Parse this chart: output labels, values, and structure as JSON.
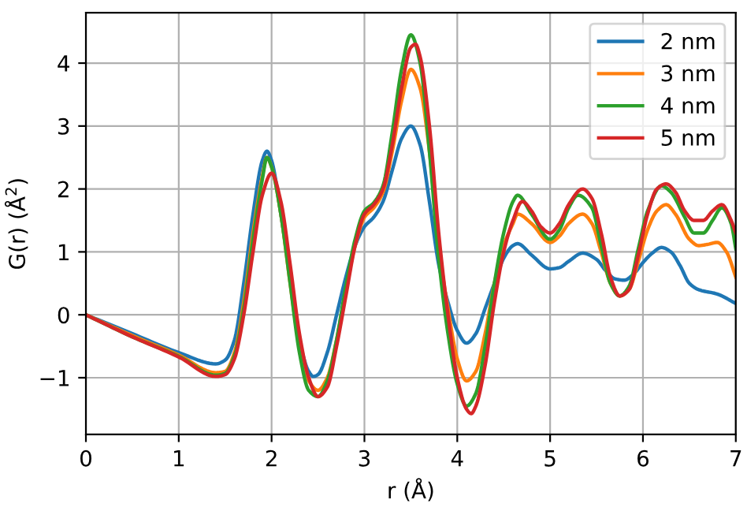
{
  "chart_data": {
    "type": "line",
    "xlabel": "r (Å)",
    "ylabel": "G(r) (Å$^{2}$)",
    "xlim": [
      0,
      7
    ],
    "ylim": [
      -1.9,
      4.8
    ],
    "xticks": [
      0,
      1,
      2,
      3,
      4,
      5,
      6,
      7
    ],
    "yticks": [
      {
        "value": -1,
        "label": "−1"
      },
      0,
      1,
      2,
      3,
      4
    ],
    "grid": true,
    "legend": "top right",
    "series": [
      {
        "name": "2 nm",
        "color": "#1f77b4",
        "x": [
          0,
          0.5,
          1,
          1.4,
          1.5,
          1.6,
          1.7,
          1.8,
          1.9,
          1.95,
          2.0,
          2.1,
          2.2,
          2.3,
          2.4,
          2.45,
          2.5,
          2.6,
          2.7,
          2.8,
          2.9,
          3.0,
          3.1,
          3.2,
          3.3,
          3.4,
          3.5,
          3.6,
          3.7,
          3.8,
          3.9,
          4.0,
          4.1,
          4.2,
          4.3,
          4.4,
          4.5,
          4.6,
          4.65,
          4.8,
          5.0,
          5.1,
          5.2,
          5.35,
          5.5,
          5.6,
          5.7,
          5.8,
          5.9,
          6.0,
          6.1,
          6.2,
          6.3,
          6.4,
          6.5,
          6.6,
          6.8,
          7.0
        ],
        "values": [
          0,
          -0.3,
          -0.6,
          -0.78,
          -0.72,
          -0.4,
          0.5,
          1.6,
          2.45,
          2.6,
          2.45,
          1.6,
          0.6,
          -0.4,
          -0.9,
          -0.98,
          -0.95,
          -0.6,
          0,
          0.6,
          1.1,
          1.4,
          1.55,
          1.8,
          2.3,
          2.8,
          3.0,
          2.7,
          1.8,
          0.8,
          0.2,
          -0.25,
          -0.45,
          -0.3,
          0.1,
          0.5,
          0.9,
          1.1,
          1.13,
          0.95,
          0.73,
          0.75,
          0.85,
          0.98,
          0.88,
          0.7,
          0.57,
          0.55,
          0.65,
          0.83,
          0.98,
          1.07,
          1.0,
          0.78,
          0.5,
          0.4,
          0.33,
          0.18
        ]
      },
      {
        "name": "3 nm",
        "color": "#ff7f0e",
        "x": [
          0,
          0.5,
          1,
          1.4,
          1.5,
          1.6,
          1.7,
          1.8,
          1.9,
          1.95,
          2.0,
          2.1,
          2.2,
          2.3,
          2.4,
          2.5,
          2.6,
          2.7,
          2.8,
          2.9,
          3.0,
          3.1,
          3.2,
          3.3,
          3.4,
          3.5,
          3.6,
          3.7,
          3.8,
          3.9,
          4.0,
          4.1,
          4.2,
          4.3,
          4.4,
          4.5,
          4.6,
          4.65,
          4.8,
          5.0,
          5.1,
          5.2,
          5.35,
          5.45,
          5.55,
          5.65,
          5.75,
          5.85,
          5.95,
          6.05,
          6.15,
          6.25,
          6.35,
          6.5,
          6.6,
          6.7,
          6.8,
          6.9,
          7.0
        ],
        "values": [
          0,
          -0.33,
          -0.64,
          -0.92,
          -0.9,
          -0.6,
          0.2,
          1.3,
          2.2,
          2.5,
          2.35,
          1.6,
          0.5,
          -0.5,
          -1.05,
          -1.2,
          -1.0,
          -0.4,
          0.4,
          1.1,
          1.55,
          1.7,
          1.95,
          2.6,
          3.4,
          3.9,
          3.6,
          2.6,
          1.1,
          0.1,
          -0.7,
          -1.05,
          -0.9,
          -0.3,
          0.5,
          1.1,
          1.45,
          1.6,
          1.45,
          1.15,
          1.25,
          1.45,
          1.6,
          1.45,
          1.0,
          0.5,
          0.3,
          0.4,
          0.85,
          1.35,
          1.65,
          1.75,
          1.6,
          1.2,
          1.1,
          1.12,
          1.15,
          1.0,
          0.6
        ]
      },
      {
        "name": "4 nm",
        "color": "#2ca02c",
        "x": [
          0,
          0.5,
          1,
          1.4,
          1.5,
          1.6,
          1.7,
          1.8,
          1.9,
          1.95,
          2.0,
          2.1,
          2.2,
          2.3,
          2.4,
          2.5,
          2.6,
          2.7,
          2.8,
          2.9,
          3.0,
          3.1,
          3.2,
          3.3,
          3.4,
          3.5,
          3.6,
          3.7,
          3.8,
          3.9,
          4.0,
          4.1,
          4.2,
          4.3,
          4.4,
          4.5,
          4.6,
          4.65,
          4.8,
          5.0,
          5.1,
          5.2,
          5.3,
          5.45,
          5.55,
          5.65,
          5.75,
          5.85,
          5.95,
          6.05,
          6.2,
          6.3,
          6.45,
          6.55,
          6.65,
          6.75,
          6.85,
          6.95,
          7.0
        ],
        "values": [
          0,
          -0.35,
          -0.66,
          -0.96,
          -0.93,
          -0.65,
          0.1,
          1.2,
          2.15,
          2.5,
          2.35,
          1.6,
          0.5,
          -0.6,
          -1.2,
          -1.3,
          -1.05,
          -0.4,
          0.45,
          1.2,
          1.65,
          1.78,
          2.05,
          2.9,
          3.9,
          4.45,
          4.0,
          2.6,
          0.9,
          -0.3,
          -1.1,
          -1.45,
          -1.25,
          -0.5,
          0.5,
          1.3,
          1.8,
          1.9,
          1.6,
          1.2,
          1.35,
          1.7,
          1.9,
          1.7,
          1.1,
          0.5,
          0.3,
          0.45,
          1.05,
          1.65,
          2.05,
          1.95,
          1.55,
          1.3,
          1.3,
          1.5,
          1.7,
          1.45,
          1.05
        ]
      },
      {
        "name": "5 nm",
        "color": "#d62728",
        "x": [
          0,
          0.5,
          1,
          1.4,
          1.5,
          1.6,
          1.7,
          1.8,
          1.9,
          2.0,
          2.1,
          2.2,
          2.3,
          2.4,
          2.5,
          2.6,
          2.7,
          2.8,
          2.9,
          3.0,
          3.1,
          3.2,
          3.3,
          3.4,
          3.5,
          3.55,
          3.6,
          3.7,
          3.8,
          3.9,
          4.0,
          4.1,
          4.15,
          4.2,
          4.3,
          4.4,
          4.5,
          4.6,
          4.7,
          4.8,
          4.9,
          5.0,
          5.1,
          5.2,
          5.35,
          5.45,
          5.55,
          5.65,
          5.75,
          5.85,
          5.95,
          6.05,
          6.15,
          6.25,
          6.35,
          6.45,
          6.55,
          6.65,
          6.75,
          6.85,
          6.95,
          7.0
        ],
        "values": [
          0,
          -0.35,
          -0.67,
          -0.98,
          -0.95,
          -0.7,
          0,
          1.0,
          1.9,
          2.25,
          1.8,
          0.8,
          -0.3,
          -1.0,
          -1.3,
          -1.15,
          -0.5,
          0.3,
          1.1,
          1.6,
          1.75,
          2.0,
          2.7,
          3.6,
          4.25,
          4.3,
          4.1,
          3.0,
          1.3,
          0,
          -1.0,
          -1.5,
          -1.57,
          -1.45,
          -0.8,
          0.2,
          1.0,
          1.5,
          1.8,
          1.65,
          1.4,
          1.3,
          1.45,
          1.75,
          2.0,
          1.85,
          1.3,
          0.6,
          0.3,
          0.4,
          0.95,
          1.6,
          2.0,
          2.08,
          1.95,
          1.65,
          1.5,
          1.5,
          1.65,
          1.75,
          1.5,
          1.3
        ]
      }
    ]
  }
}
